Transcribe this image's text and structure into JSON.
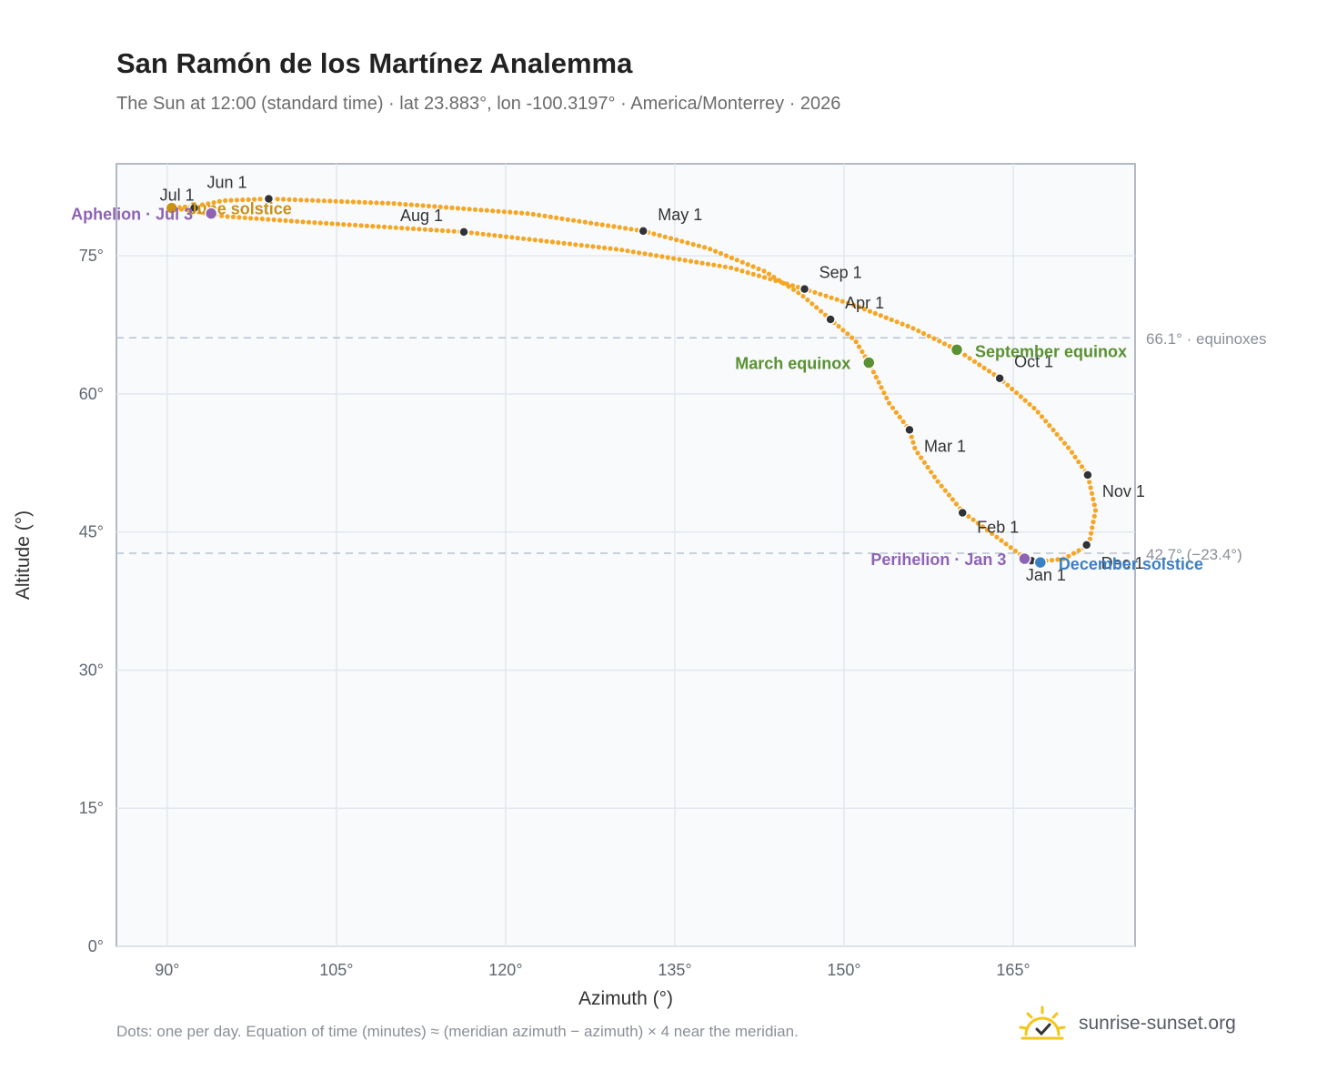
{
  "chart_data": {
    "type": "scatter",
    "title": "San Ramón de los Martínez Analemma",
    "subtitle": "The Sun at 12:00 (standard time) · lat 23.883°, lon -100.3197° · America/Monterrey · 2026",
    "xlabel": "Azimuth (°)",
    "ylabel": "Altitude (°)",
    "xlim": [
      85.5,
      175.8
    ],
    "ylim": [
      0,
      85
    ],
    "xticks": [
      {
        "value": 90,
        "label": "90°"
      },
      {
        "value": 105,
        "label": "105°"
      },
      {
        "value": 120,
        "label": "120°"
      },
      {
        "value": 135,
        "label": "135°"
      },
      {
        "value": 150,
        "label": "150°"
      },
      {
        "value": 165,
        "label": "165°"
      }
    ],
    "yticks": [
      {
        "value": 0,
        "label": "0°"
      },
      {
        "value": 15,
        "label": "15°"
      },
      {
        "value": 30,
        "label": "30°"
      },
      {
        "value": 45,
        "label": "45°"
      },
      {
        "value": 60,
        "label": "60°"
      },
      {
        "value": 75,
        "label": "75°"
      }
    ],
    "grid": true,
    "series_color": "#f5a623",
    "path": [
      [
        167.4,
        41.8
      ],
      [
        166.1,
        41.9
      ],
      [
        166.0,
        42.2
      ],
      [
        163.6,
        44.4
      ],
      [
        160.6,
        47.1
      ],
      [
        158.3,
        50.5
      ],
      [
        156.3,
        54.0
      ],
      [
        155.8,
        56.1
      ],
      [
        154.0,
        59.0
      ],
      [
        152.2,
        63.4
      ],
      [
        151.0,
        65.8
      ],
      [
        148.8,
        68.1
      ],
      [
        146.2,
        70.8
      ],
      [
        143.0,
        73.3
      ],
      [
        138.0,
        75.8
      ],
      [
        132.2,
        77.7
      ],
      [
        122.0,
        79.6
      ],
      [
        110.0,
        80.7
      ],
      [
        99.0,
        81.2
      ],
      [
        95.0,
        81.0
      ],
      [
        92.5,
        80.4
      ],
      [
        90.4,
        80.2
      ],
      [
        92.2,
        79.9
      ],
      [
        95.0,
        79.3
      ],
      [
        102.0,
        78.7
      ],
      [
        116.3,
        77.6
      ],
      [
        130.0,
        75.7
      ],
      [
        140.0,
        73.7
      ],
      [
        146.5,
        71.4
      ],
      [
        151.0,
        69.6
      ],
      [
        156.0,
        67.2
      ],
      [
        160.0,
        64.8
      ],
      [
        163.8,
        61.7
      ],
      [
        167.0,
        58.3
      ],
      [
        170.0,
        54.0
      ],
      [
        171.6,
        51.2
      ],
      [
        172.3,
        47.4
      ],
      [
        171.7,
        43.6
      ],
      [
        169.5,
        42.1
      ],
      [
        167.4,
        41.8
      ]
    ],
    "month_markers": [
      {
        "label": "Jan 1",
        "x": 166.6,
        "y": 41.9
      },
      {
        "label": "Feb 1",
        "x": 160.5,
        "y": 47.1
      },
      {
        "label": "Mar 1",
        "x": 155.8,
        "y": 56.1
      },
      {
        "label": "Apr 1",
        "x": 148.8,
        "y": 68.1
      },
      {
        "label": "May 1",
        "x": 132.2,
        "y": 77.7
      },
      {
        "label": "Jun 1",
        "x": 99.0,
        "y": 81.2
      },
      {
        "label": "Jul 1",
        "x": 92.4,
        "y": 80.2
      },
      {
        "label": "Aug 1",
        "x": 116.3,
        "y": 77.6
      },
      {
        "label": "Sep 1",
        "x": 146.5,
        "y": 71.4
      },
      {
        "label": "Oct 1",
        "x": 163.8,
        "y": 61.7
      },
      {
        "label": "Nov 1",
        "x": 171.6,
        "y": 51.2
      },
      {
        "label": "Dec 1",
        "x": 171.5,
        "y": 43.6
      }
    ],
    "events": [
      {
        "label": "June solstice",
        "x": 90.4,
        "y": 80.2,
        "color": "#c99217"
      },
      {
        "label": "Aphelion · Jul 3",
        "x": 93.9,
        "y": 79.6,
        "color": "#8e63b5"
      },
      {
        "label": "March equinox",
        "x": 152.2,
        "y": 63.4,
        "color": "#5a9132"
      },
      {
        "label": "September equinox",
        "x": 160.0,
        "y": 64.8,
        "color": "#5a9132"
      },
      {
        "label": "Perihelion · Jan 3",
        "x": 166.0,
        "y": 42.1,
        "color": "#8e63b5"
      },
      {
        "label": "December solstice",
        "x": 167.4,
        "y": 41.7,
        "color": "#3b7fc4"
      }
    ],
    "reference_lines": [
      {
        "value": 66.1,
        "label": "66.1° · equinoxes"
      },
      {
        "value": 42.7,
        "label": "42.7° (−23.4°)"
      }
    ]
  },
  "footnote": "Dots: one per day. Equation of time (minutes) ≈ (meridian azimuth − azimuth) × 4 near the meridian.",
  "brand": {
    "name": "sunrise-sunset.org",
    "icon": "sun-logo-icon",
    "color": "#f5c518"
  }
}
